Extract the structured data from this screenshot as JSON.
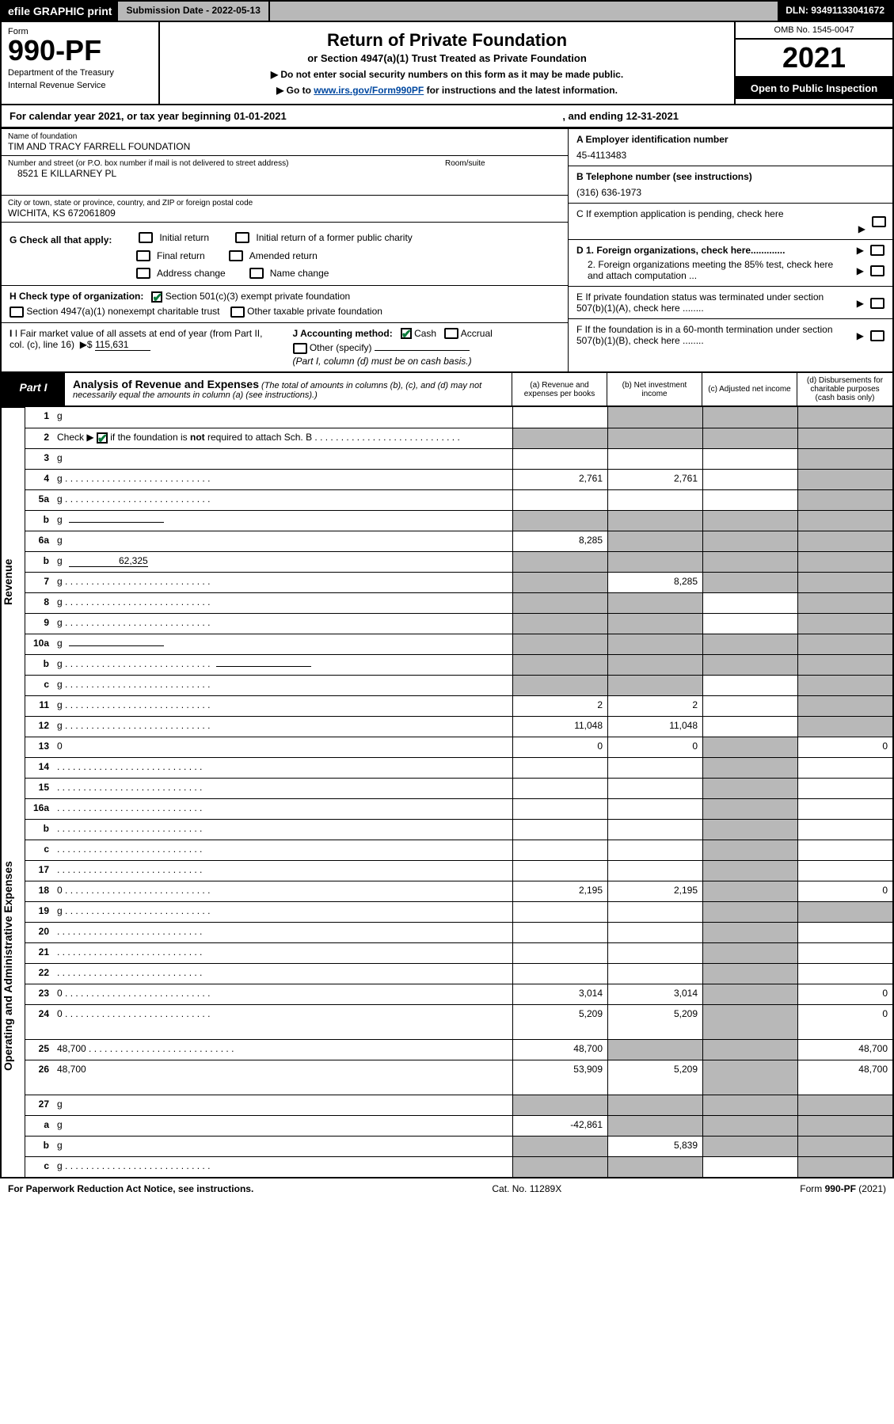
{
  "topbar": {
    "efile": "efile GRAPHIC print",
    "submission_label": "Submission Date - 2022-05-13",
    "dln": "DLN: 93491133041672"
  },
  "header": {
    "form_label": "Form",
    "form_number": "990-PF",
    "dept": "Department of the Treasury",
    "irs": "Internal Revenue Service",
    "title": "Return of Private Foundation",
    "subtitle": "or Section 4947(a)(1) Trust Treated as Private Foundation",
    "instr1": "▶ Do not enter social security numbers on this form as it may be made public.",
    "instr2_pre": "▶ Go to ",
    "instr2_link": "www.irs.gov/Form990PF",
    "instr2_post": " for instructions and the latest information.",
    "omb": "OMB No. 1545-0047",
    "year": "2021",
    "open": "Open to Public Inspection"
  },
  "calyear": {
    "text": "For calendar year 2021, or tax year beginning 01-01-2021",
    "ending": ", and ending 12-31-2021"
  },
  "name": {
    "lbl": "Name of foundation",
    "val": "TIM AND TRACY FARRELL FOUNDATION"
  },
  "addr": {
    "lbl": "Number and street (or P.O. box number if mail is not delivered to street address)",
    "val": "8521 E KILLARNEY PL",
    "room_lbl": "Room/suite"
  },
  "city": {
    "lbl": "City or town, state or province, country, and ZIP or foreign postal code",
    "val": "WICHITA, KS  672061809"
  },
  "right": {
    "A_lbl": "A Employer identification number",
    "A_val": "45-4113483",
    "B_lbl": "B Telephone number (see instructions)",
    "B_val": "(316) 636-1973",
    "C": "C If exemption application is pending, check here",
    "D1": "D 1. Foreign organizations, check here.............",
    "D2": "2. Foreign organizations meeting the 85% test, check here and attach computation ...",
    "E": "E  If private foundation status was terminated under section 507(b)(1)(A), check here ........",
    "F": "F  If the foundation is in a 60-month termination under section 507(b)(1)(B), check here ........"
  },
  "G": {
    "lead": "G Check all that apply:",
    "opts": [
      "Initial return",
      "Initial return of a former public charity",
      "Final return",
      "Amended return",
      "Address change",
      "Name change"
    ]
  },
  "H": {
    "lead": "H Check type of organization:",
    "opt1": "Section 501(c)(3) exempt private foundation",
    "opt2": "Section 4947(a)(1) nonexempt charitable trust",
    "opt3": "Other taxable private foundation"
  },
  "I": {
    "text": "I Fair market value of all assets at end of year (from Part II, col. (c), line 16)",
    "arrow": "▶$",
    "val": "115,631"
  },
  "J": {
    "lead": "J Accounting method:",
    "cash": "Cash",
    "accrual": "Accrual",
    "other": "Other (specify)",
    "note": "(Part I, column (d) must be on cash basis.)"
  },
  "part1": {
    "tab": "Part I",
    "title_b": "Analysis of Revenue and Expenses",
    "title_rest": " (The total of amounts in columns (b), (c), and (d) may not necessarily equal the amounts in column (a) (see instructions).)",
    "cols": {
      "a": "(a)   Revenue and expenses per books",
      "b": "(b)   Net investment income",
      "c": "(c)   Adjusted net income",
      "d": "(d)   Disbursements for charitable purposes (cash basis only)"
    }
  },
  "side": {
    "revenue": "Revenue",
    "expenses": "Operating and Administrative Expenses"
  },
  "rows": [
    {
      "n": "1",
      "d": "g",
      "a": "",
      "b": "g",
      "c": "g"
    },
    {
      "n": "2",
      "d": "g",
      "a": "g",
      "b": "g",
      "c": "g",
      "dots": true,
      "chk": true
    },
    {
      "n": "3",
      "d": "g",
      "a": "",
      "b": "",
      "c": ""
    },
    {
      "n": "4",
      "d": "g",
      "a": "2,761",
      "b": "2,761",
      "c": "",
      "dots": true
    },
    {
      "n": "5a",
      "d": "g",
      "a": "",
      "b": "",
      "c": "",
      "dots": true
    },
    {
      "n": "b",
      "d": "g",
      "a": "g",
      "b": "g",
      "c": "g",
      "uline": true
    },
    {
      "n": "6a",
      "d": "g",
      "a": "8,285",
      "b": "g",
      "c": "g"
    },
    {
      "n": "b",
      "d": "g",
      "a": "g",
      "b": "g",
      "c": "g",
      "uval": "62,325"
    },
    {
      "n": "7",
      "d": "g",
      "a": "g",
      "b": "8,285",
      "c": "g",
      "dots": true
    },
    {
      "n": "8",
      "d": "g",
      "a": "g",
      "b": "g",
      "c": "",
      "dots": true
    },
    {
      "n": "9",
      "d": "g",
      "a": "g",
      "b": "g",
      "c": "",
      "dots": true
    },
    {
      "n": "10a",
      "d": "g",
      "a": "g",
      "b": "g",
      "c": "g",
      "uline": true
    },
    {
      "n": "b",
      "d": "g",
      "a": "g",
      "b": "g",
      "c": "g",
      "uline": true,
      "dots": true
    },
    {
      "n": "c",
      "d": "g",
      "a": "g",
      "b": "g",
      "c": "",
      "dots": true
    },
    {
      "n": "11",
      "d": "g",
      "a": "2",
      "b": "2",
      "c": "",
      "dots": true
    },
    {
      "n": "12",
      "d": "g",
      "a": "11,048",
      "b": "11,048",
      "c": "",
      "dots": true
    }
  ],
  "exp_rows": [
    {
      "n": "13",
      "d": "0",
      "a": "0",
      "b": "0",
      "c": "g"
    },
    {
      "n": "14",
      "d": "",
      "a": "",
      "b": "",
      "c": "g",
      "dots": true
    },
    {
      "n": "15",
      "d": "",
      "a": "",
      "b": "",
      "c": "g",
      "dots": true
    },
    {
      "n": "16a",
      "d": "",
      "a": "",
      "b": "",
      "c": "g",
      "dots": true
    },
    {
      "n": "b",
      "d": "",
      "a": "",
      "b": "",
      "c": "g",
      "dots": true
    },
    {
      "n": "c",
      "d": "",
      "a": "",
      "b": "",
      "c": "g",
      "dots": true
    },
    {
      "n": "17",
      "d": "",
      "a": "",
      "b": "",
      "c": "g",
      "dots": true
    },
    {
      "n": "18",
      "d": "0",
      "a": "2,195",
      "b": "2,195",
      "c": "g",
      "dots": true
    },
    {
      "n": "19",
      "d": "g",
      "a": "",
      "b": "",
      "c": "g",
      "dots": true
    },
    {
      "n": "20",
      "d": "",
      "a": "",
      "b": "",
      "c": "g",
      "dots": true
    },
    {
      "n": "21",
      "d": "",
      "a": "",
      "b": "",
      "c": "g",
      "dots": true
    },
    {
      "n": "22",
      "d": "",
      "a": "",
      "b": "",
      "c": "g",
      "dots": true
    },
    {
      "n": "23",
      "d": "0",
      "a": "3,014",
      "b": "3,014",
      "c": "g",
      "dots": true
    },
    {
      "n": "24",
      "d": "0",
      "a": "5,209",
      "b": "5,209",
      "c": "g",
      "dots": true,
      "tall": true
    },
    {
      "n": "25",
      "d": "48,700",
      "a": "48,700",
      "b": "g",
      "c": "g",
      "dots": true
    },
    {
      "n": "26",
      "d": "48,700",
      "a": "53,909",
      "b": "5,209",
      "c": "g",
      "tall": true
    },
    {
      "n": "27",
      "d": "g",
      "a": "g",
      "b": "g",
      "c": "g"
    },
    {
      "n": "a",
      "d": "g",
      "a": "-42,861",
      "b": "g",
      "c": "g"
    },
    {
      "n": "b",
      "d": "g",
      "a": "g",
      "b": "5,839",
      "c": "g"
    },
    {
      "n": "c",
      "d": "g",
      "a": "g",
      "b": "g",
      "c": "",
      "dots": true
    }
  ],
  "foot": {
    "l": "For Paperwork Reduction Act Notice, see instructions.",
    "m": "Cat. No. 11289X",
    "r": "Form 990-PF (2021)"
  },
  "colors": {
    "grey": "#b8b8b8",
    "link": "#0048a0",
    "check": "#0a7a3a"
  }
}
